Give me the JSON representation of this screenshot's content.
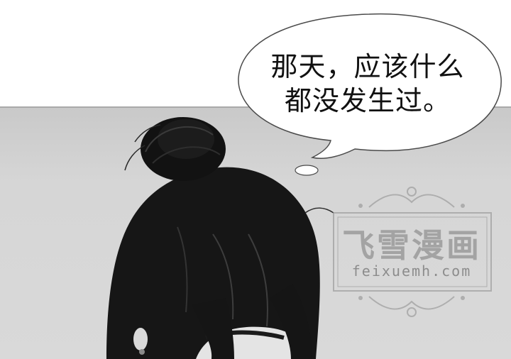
{
  "speech_bubble": {
    "line1": "那天，应该什么",
    "line2": "都没发生过。"
  },
  "watermark": {
    "title": "飞雪漫画",
    "url": "feixuemh.com"
  },
  "colors": {
    "page_background": "#ffffff",
    "panel_background": "#d6d6d6",
    "hair": "#141414",
    "bubble_fill": "#ffffff",
    "bubble_stroke": "#4a4a4a"
  }
}
